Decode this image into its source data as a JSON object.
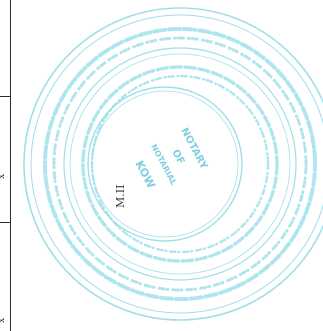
{
  "margin_marks": [
    "x",
    "x"
  ],
  "seal": {
    "kind": "circular rubber stamp, cyan ink, mostly illegible",
    "center_text_lines": [
      "NOTARY",
      "OF",
      "NOTARIAL",
      "KOW"
    ],
    "signature": "M.II",
    "ink_color": "#8fd9e6"
  }
}
